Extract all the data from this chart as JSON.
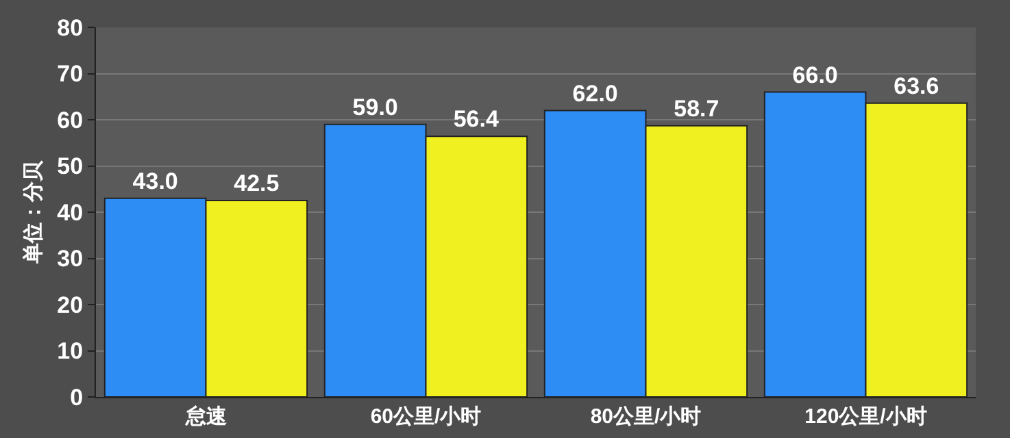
{
  "chart_data": {
    "type": "bar",
    "ylabel": "单位：分贝",
    "categories": [
      "怠速",
      "60公里/小时",
      "80公里/小时",
      "120公里/小时"
    ],
    "series": [
      {
        "color": "#2e8cf5",
        "values": [
          43.0,
          59.0,
          62.0,
          66.0
        ],
        "value_labels": [
          "43.0",
          "59.0",
          "62.0",
          "66.0"
        ]
      },
      {
        "color": "#f0f020",
        "values": [
          42.5,
          56.4,
          58.7,
          63.6
        ],
        "value_labels": [
          "42.5",
          "56.4",
          "58.7",
          "63.6"
        ]
      }
    ],
    "ylim": [
      0,
      80
    ],
    "yticks": [
      0,
      10,
      20,
      30,
      40,
      50,
      60,
      70,
      80
    ],
    "grid": "y"
  }
}
